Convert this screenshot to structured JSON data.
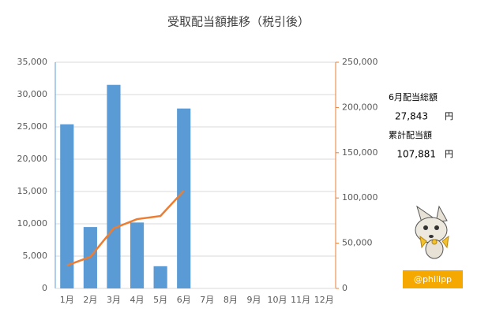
{
  "chart_data": {
    "type": "bar_line",
    "title": "受取配当額推移（税引後）",
    "categories": [
      "1月",
      "2月",
      "3月",
      "4月",
      "5月",
      "6月",
      "7月",
      "8月",
      "9月",
      "10月",
      "11月",
      "12月"
    ],
    "series": [
      {
        "type": "bar",
        "color": "#5b9bd5",
        "values": [
          25400,
          9500,
          31500,
          10200,
          3438,
          27843,
          null,
          null,
          null,
          null,
          null,
          null
        ]
      },
      {
        "type": "line",
        "color": "#ed7d31",
        "axis": "y2",
        "values": [
          25400,
          34900,
          66400,
          76600,
          80038,
          107881,
          null,
          null,
          null,
          null,
          null,
          null
        ]
      }
    ],
    "ylim": [
      0,
      35000
    ],
    "yticks": [
      0,
      {
        "value": 5000,
        "label": "5,000"
      },
      {
        "value": 10000,
        "label": "10,000"
      },
      {
        "value": 15000,
        "label": "15,000"
      },
      {
        "value": 20000,
        "label": "20,000"
      },
      {
        "value": 25000,
        "label": "25,000"
      },
      {
        "value": 30000,
        "label": "30,000"
      },
      {
        "value": 35000,
        "label": "35,000"
      }
    ],
    "y2lim": [
      0,
      250000
    ],
    "y2ticks": [
      0,
      {
        "value": 50000,
        "label": "50,000"
      },
      {
        "value": 100000,
        "label": "100,000"
      },
      {
        "value": 150000,
        "label": "150,000"
      },
      {
        "value": 200000,
        "label": "200,000"
      },
      {
        "value": 250000,
        "label": "250,000"
      }
    ],
    "grid": true
  },
  "summary": {
    "month_label": "6月配当総額",
    "month_value": "27,843",
    "month_unit": "円",
    "total_label": "累計配当額",
    "total_value": "107,881",
    "total_unit": "円"
  },
  "badge": "@philipp"
}
